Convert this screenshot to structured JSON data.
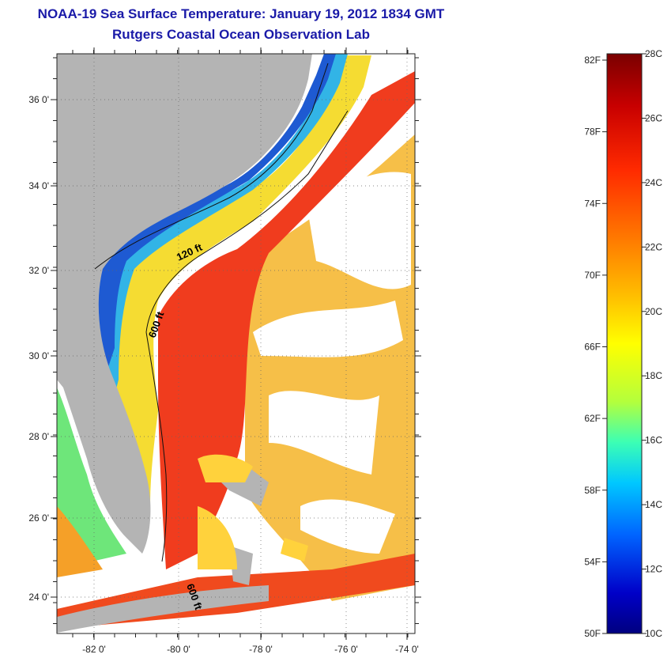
{
  "header": {
    "title": "NOAA-19 Sea Surface Temperature:  January 19, 2012 1834 GMT",
    "subtitle": "Rutgers Coastal Ocean Observation Lab"
  },
  "map": {
    "lat_ticks": [
      "36 0'",
      "34 0'",
      "32 0'",
      "30 0'",
      "28 0'",
      "26 0'",
      "24 0'"
    ],
    "lon_ticks": [
      "-82 0'",
      "-80 0'",
      "-78 0'",
      "-76 0'",
      "-74 0'"
    ],
    "contour_labels": [
      "120 ft",
      "600 ft",
      "600 ft"
    ],
    "colors": {
      "land": "#b4b4b4",
      "cloud": "#ffffff",
      "warm_stream": "#f03c1e",
      "mid_water": "#f5a01e",
      "cool_shelf": "#1e5ad2"
    }
  },
  "colorbar": {
    "fahrenheit_labels": [
      "82F",
      "78F",
      "74F",
      "70F",
      "66F",
      "62F",
      "58F",
      "54F",
      "50F"
    ],
    "celsius_labels": [
      "28C",
      "26C",
      "24C",
      "22C",
      "20C",
      "18C",
      "16C",
      "14C",
      "12C",
      "10C"
    ],
    "colors": [
      "#7a0000",
      "#c80000",
      "#ff2a00",
      "#ff7a00",
      "#ffc000",
      "#ffff00",
      "#b4ff3c",
      "#3cffb4",
      "#00c8ff",
      "#0064ff",
      "#0000c8",
      "#000080"
    ]
  }
}
